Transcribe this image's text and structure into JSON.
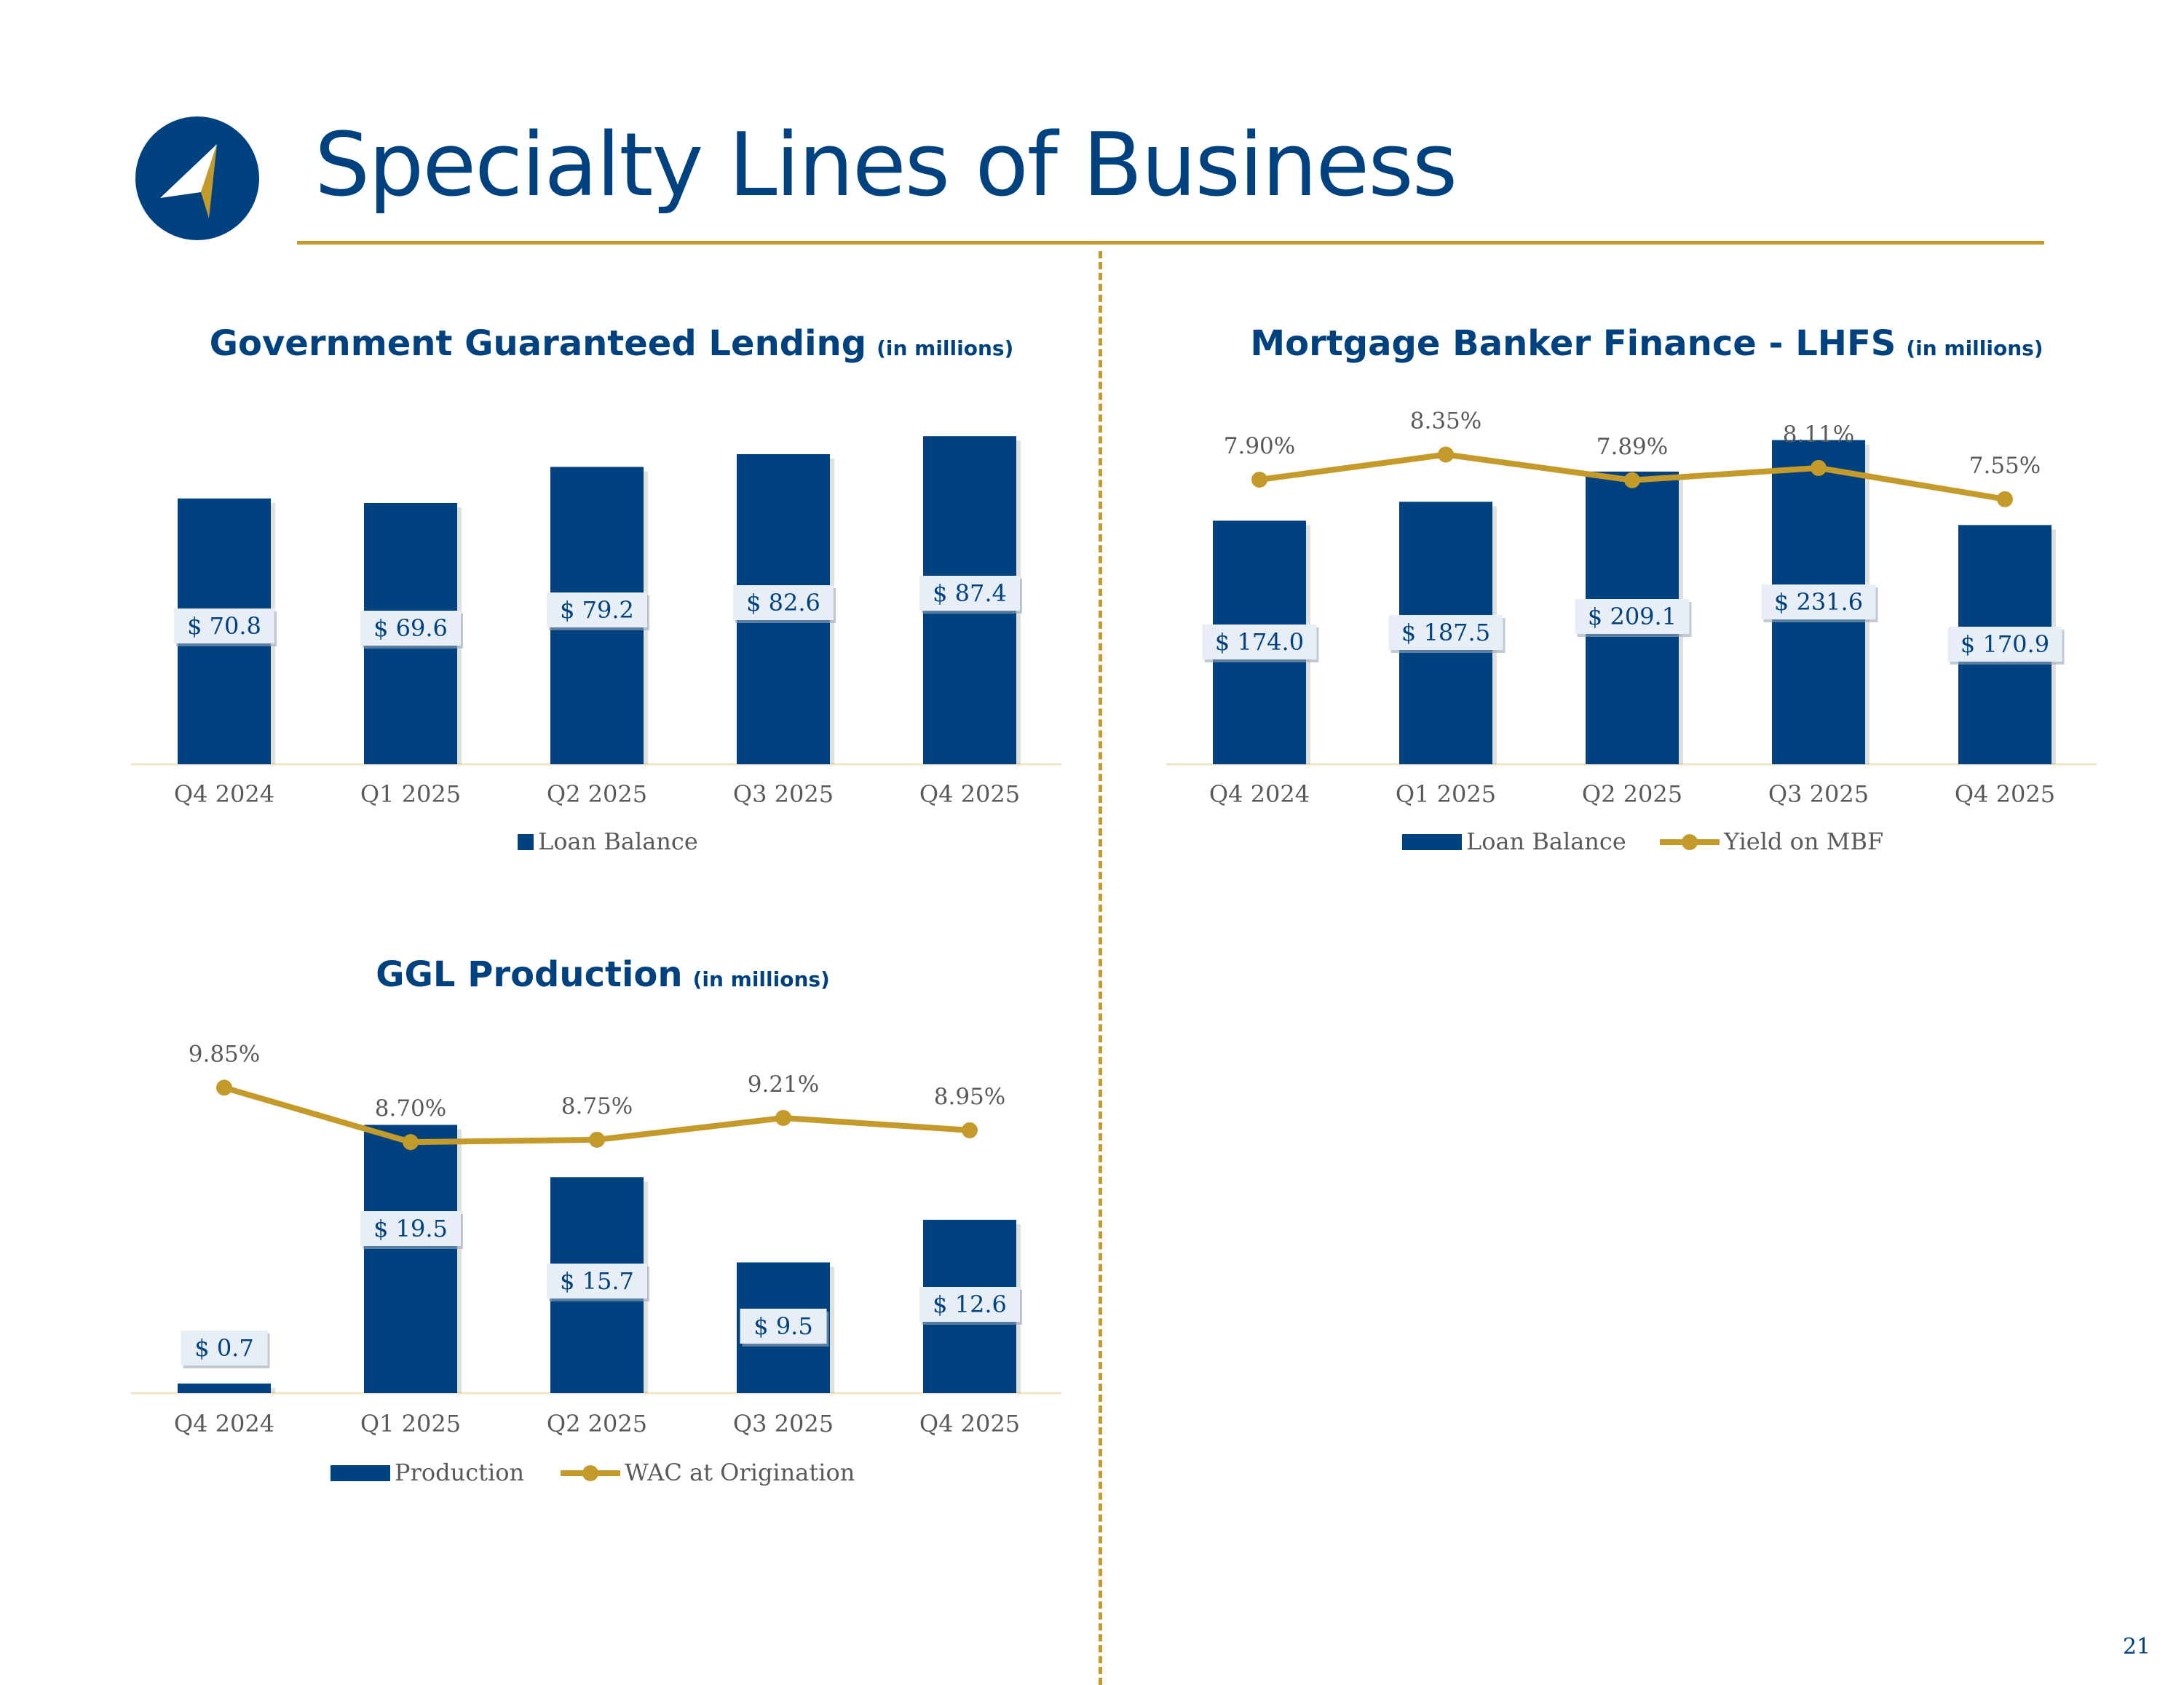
{
  "page": {
    "title": "Specialty Lines of Business",
    "page_number": "21",
    "colors": {
      "navy": "#00427F",
      "gold": "#C49A2A",
      "label_bg": "#E8EEF6",
      "axis_text": "#595959"
    }
  },
  "chart_data": [
    {
      "id": "ggl",
      "type": "bar",
      "title": "Government Guaranteed Lending",
      "title_suffix": "(in millions)",
      "categories": [
        "Q4 2024",
        "Q1 2025",
        "Q2 2025",
        "Q3 2025",
        "Q4 2025"
      ],
      "series": [
        {
          "name": "Loan Balance",
          "type": "bar",
          "values": [
            70.8,
            69.6,
            79.2,
            82.6,
            87.4
          ],
          "labels": [
            "$ 70.8",
            "$ 69.6",
            "$ 79.2",
            "$ 82.6",
            "$ 87.4"
          ]
        }
      ],
      "ylim": [
        0,
        95
      ],
      "legend": "bottom"
    },
    {
      "id": "mbf",
      "type": "bar",
      "title": "Mortgage Banker Finance - LHFS",
      "title_suffix": "(in millions)",
      "categories": [
        "Q4 2024",
        "Q1 2025",
        "Q2 2025",
        "Q3 2025",
        "Q4 2025"
      ],
      "series": [
        {
          "name": "Loan Balance",
          "type": "bar",
          "values": [
            174.0,
            187.5,
            209.1,
            231.6,
            170.9
          ],
          "labels": [
            "$ 174.0",
            "$ 187.5",
            "$ 209.1",
            "$ 231.6",
            "$ 170.9"
          ]
        },
        {
          "name": "Yield on MBF",
          "type": "line",
          "values": [
            7.9,
            8.35,
            7.89,
            8.11,
            7.55
          ],
          "labels": [
            "7.90%",
            "8.35%",
            "7.89%",
            "8.11%",
            "7.55%"
          ]
        }
      ],
      "ylim": [
        0,
        234
      ],
      "y2lim": [
        2.8,
        8.8
      ],
      "legend": "bottom"
    },
    {
      "id": "gglp",
      "type": "bar",
      "title": "GGL Production",
      "title_suffix": "(in millions)",
      "categories": [
        "Q4 2024",
        "Q1 2025",
        "Q2 2025",
        "Q3 2025",
        "Q4 2025"
      ],
      "series": [
        {
          "name": "Production",
          "type": "bar",
          "values": [
            0.7,
            19.5,
            15.7,
            9.5,
            12.6
          ],
          "labels": [
            "$ 0.7",
            "$ 19.5",
            "$ 15.7",
            "$ 9.5",
            "$ 12.6"
          ]
        },
        {
          "name": "WAC at Origination",
          "type": "line",
          "values": [
            9.85,
            8.7,
            8.75,
            9.21,
            8.95
          ],
          "labels": [
            "9.85%",
            "8.70%",
            "8.75%",
            "9.21%",
            "8.95%"
          ]
        }
      ],
      "ylim": [
        0,
        20
      ],
      "y2lim": [
        3.4,
        10.3
      ],
      "legend": "bottom"
    }
  ]
}
